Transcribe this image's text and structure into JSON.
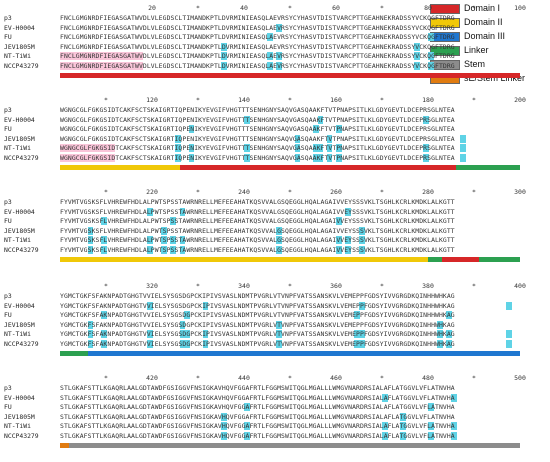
{
  "legend": [
    {
      "label": "Domain I",
      "color": "#d62728"
    },
    {
      "label": "Domain II",
      "color": "#f0c808"
    },
    {
      "label": "Domain III",
      "color": "#1f77d0"
    },
    {
      "label": "Linker",
      "color": "#2ca050"
    },
    {
      "label": "Stem",
      "color": "#8c8c8c"
    },
    {
      "label": "sE/Stem Linker",
      "color": "#e07b10"
    }
  ],
  "names": [
    "p3",
    "EV-H0004",
    "FU",
    "JEV1805M",
    "NT-TiWi",
    "NCCP43279"
  ],
  "blocks": [
    {
      "ruler": [
        "20",
        "*",
        "40",
        "*",
        "60",
        "*",
        "80",
        "*",
        "100"
      ],
      "seqs": [
        "FNCLGMGNRDFIEGASGATWVDLVLEGDSCLTIMANDKPTLDVRMINIEASQLAEVRSYCYHASVTDISTVARCPTTGEAHNEKRADSSYVCKQGFTDRG",
        "FNCLGMGNRDFIEGASGATWVDLVLEGDSCLTIMANDKPTLDVRMINIEASQLAEVRSYCYHASVTDISTVARCPTTGEAHNEKRADSSYVCKQGFTDRG",
        "FNCLGMGNRDFIEGASGATWVDLVLEGDSCLTIMANDKPTLDVRMINIEASQLAEVRSYCYHASVTDISTVARCPTTGEAHNEKRADSSYVCKQGFTDRG",
        "FNCLGMGNRDFIEGASGATWVDLVLEGDSCLTIMANDKPTLDVRMINIEASQLAEVRSYCYHASVTDISTVARCPTTGEAHNEKRADSSYVCKQGFTDRG",
        "FNCLGMGNRDFIEGASGATWVDLVLEGDSCLTIMANDKPTLDVRMINIEASQLAEVRSYCYHASVTDISTVARCPTTGEAHNEKRADSSYVCKQGFTDRG",
        "FNCLGMGNRDFIEGASGATWVDLVLEGDSCLTIMANDKPTLDVRMINIEASQLAEVRSYCYHASVTDISTVARCPTTGEAHNEKRADSSYVCKQGFTDRG"
      ],
      "bar": [
        {
          "domain": 0,
          "from": 0,
          "to": 1
        }
      ]
    },
    {
      "ruler": [
        "*",
        "120",
        "*",
        "140",
        "*",
        "160",
        "*",
        "180",
        "*",
        "200"
      ],
      "seqs": [
        "WGNGCGLFGKGSIDTCAKFSCTSKAIGRTIQPENIKYEVGIFVHGTTTSENHGNYSAQVGASQAAKFTVTPNAPSITLKLGDYGEVTLDCEPRSGLNTEA",
        "WGNGCGLFGKGSIDTCAKFSCTSKAIGRTIQPENIKYEVGIFVHGTTTSENHGNYSAQVGASQAAKFTVTPNAPSITLKLGDYGEVTLDCEPRSGLNTEA",
        "WGNGCGLFGKGSIDTCAKFSCTSKAIGRTIQPENIKYEVGIFVHGTTTSENHGNYSAQVGASQAAKFTVTPNAPSITLKLGDYGEVTLDCEPRSGLNTEA",
        "WGNGCGLFGKGSIDTCAKFSCTSKAIGRTIQPENIKYEVGIFVHGTTTSENHGNYSAQVGASQAAKFTVTPNAPSITLKLGDYGEVTLDCEPRSGLNTEA",
        "WGNGCGLFGKGSIDTCAKFSCTSKAIGRTIQPENIKYEVGIFVHGTTTSENHGNYSAQVGASQAAKFTVTPNAPSITLKLGDYGEVTLDCEPRSGLNTEA",
        "WGNGCGLFGKGSIDTCAKFSCTSKAIGRTIQPENIKYEVGIFVHGTTTSENHGNYSAQVGASQAAKFTVTPNAPSITLKLGDYGEVTLDCEPRSGLNTEA"
      ],
      "bar": [
        {
          "domain": 1,
          "from": 0,
          "to": 0.26
        },
        {
          "domain": 0,
          "from": 0.26,
          "to": 0.86
        },
        {
          "domain": 3,
          "from": 0.86,
          "to": 1
        }
      ]
    },
    {
      "ruler": [
        "*",
        "220",
        "*",
        "240",
        "*",
        "260",
        "*",
        "280",
        "*",
        "300"
      ],
      "seqs": [
        "FYVMTVGSKSFLVHREWFHDLALPWTSPSSTAWRNRELLMEFEEAHATKQSVVALGSQEGGLHQALAGAIVVEYSSSVKLTSGHLKCRLKMDKLALKGTT",
        "FYVMTVGSKSFLVHREWFHDLALPWTSPSSTAWRNRELLMEFEEAHATKQSVVALGSQEGGLHQALAGAIVVEYSSSVKLTSGHLKCRLKMDKLALKGTT",
        "FYVMTVGSKSFLVHREWFHDLALPWTSPSSTAWRNRELLMEFEEAHATKQSVVALGSQEGGLHQALAGAIVVEYSSSVKLTSGHLKCRLKMDKLALKGTT",
        "FYVMTVGSKSFLVHREWFHDLALPWTSPSSTAWRNRELLMEFEEAHATKQSVVALGSQEGGLHQALAGAIVVEYSSSVKLTSGHLKCRLKMDKLALKGTT",
        "FYVMTVGSKSFLVHREWFHDLALPWTSPSSTAWRNRELLMEFEEAHATKQSVVALGSQEGGLHQALAGAIVVEYSSSVKLTSGHLKCRLKMDKLALKGTT",
        "FYVMTVGSKSFLVHREWFHDLALPWTSPSSTAWRNRELLMEFEEAHATKQSVVALGSQEGGLHQALAGAIVVEYSSSVKLTSGHLKCRLKMDKLALKGTT"
      ],
      "bar": [
        {
          "domain": 1,
          "from": 0,
          "to": 0.8
        },
        {
          "domain": 3,
          "from": 0.8,
          "to": 0.83
        },
        {
          "domain": 0,
          "from": 0.83,
          "to": 0.91
        },
        {
          "domain": 3,
          "from": 0.91,
          "to": 1
        }
      ]
    },
    {
      "ruler": [
        "*",
        "320",
        "*",
        "340",
        "*",
        "360",
        "*",
        "380",
        "*",
        "400"
      ],
      "seqs": [
        "YGMCTGKFSFAKNPADTGHGTVVIELSYSGSDGPCKIPIVSVASLNDMTPVGRLVTVNPFVATSSANSKVLVEMEPPFGDSYIVVGRGDKQINHHWHKAG",
        "YGMCTGKFSFAKNPADTGHGTVVIELSYSGSDGPCKIPIVSVASLNDMTPVGRLVTVNPFVATSSANSKVLVEMEPPFGDSYIVVGRGDKQINHHWHKAG",
        "YGMCTGKFSFAKNPADTGHGTVVIELSYSGSDGPCKIPIVSVASLNDMTPVGRLVTVNPFVATSSANSKVLVEMEPPFGDSYIVVGRGDKQINHHWHKAG",
        "YGMCTGKFSFAKNPADTGHGTVVIELSYSGSDGPCKIPIVSVASLNDMTPVGRLVTVNPFVATSSANSKVLVEMEPPFGDSYIVVGRGDKQINHHWHKAG",
        "YGMCTGKFSFAKNPADTGHGTVVIELSYSGSDGPCKIPIVSVASLNDMTPVGRLVTVNPFVATSSANSKVLVEMEPPFGDSYIVVGRGDKQINHHWHKAG",
        "YGMCTGKFSFAKNPADTGHGTVVIELSYSGSDGPCKIPIVSVASLNDMTPVGRLVTVNPFVATSSANSKVLVEMEPPFGDSYIVVGRGDKQINHHWHKAG"
      ],
      "bar": [
        {
          "domain": 3,
          "from": 0,
          "to": 0.06
        },
        {
          "domain": 2,
          "from": 0.06,
          "to": 1
        }
      ]
    },
    {
      "ruler": [
        "*",
        "420",
        "*",
        "440",
        "*",
        "460",
        "*",
        "480",
        "*",
        "500"
      ],
      "seqs": [
        "STLGKAFSTTLKGAQRLAALGDTAWDFGSIGGVFNSIGKAVHQVFGGAFRTLFGGMSWITQGLMGALLLWMGVNARDRSIALAFLATGGVLVFLATNVHA",
        "STLGKAFSTTLKGAQRLAALGDTAWDFGSIGGVFNSIGKAVHQVFGGAFRTLFGGMSWITQGLMGALLLWMGVNARDRSIALAFLATGGVLVFLATNVHA",
        "STLGKAFSTTLKGAQRLAALGDTAWDFGSIGGVFNSIGKAVHQVFGGAFRTLFGGMSWITQGLMGALLLWMGVNARDRSIALAFLATGGVLVFLATNVHA",
        "STLGKAFSTTLKGAQRLAALGDTAWDFGSIGGVFNSIGKAVHQVFGGAFRTLFGGMSWITQGLMGALLLWMGVNARDRSIALAFLATGGVLVFLATNVHA",
        "STLGKAFSTTLKGAQRLAALGDTAWDFGSIGGVFNSIGKAVHQVFGGAFRTLFGGMSWITQGLMGALLLWMGVNARDRSIALAFLATGGVLVFLATNVHA",
        "STLGKAFSTTLKGAQRLAALGDTAWDFGSIGGVFNSIGKAVHQVFGGAFRTLFGGMSWITQGLMGALLLWMGVNARDRSIALAFLATGGVLVFLATNVHA"
      ],
      "bar": [
        {
          "domain": 5,
          "from": 0,
          "to": 0.02
        },
        {
          "domain": 4,
          "from": 0.02,
          "to": 1
        }
      ]
    }
  ]
}
